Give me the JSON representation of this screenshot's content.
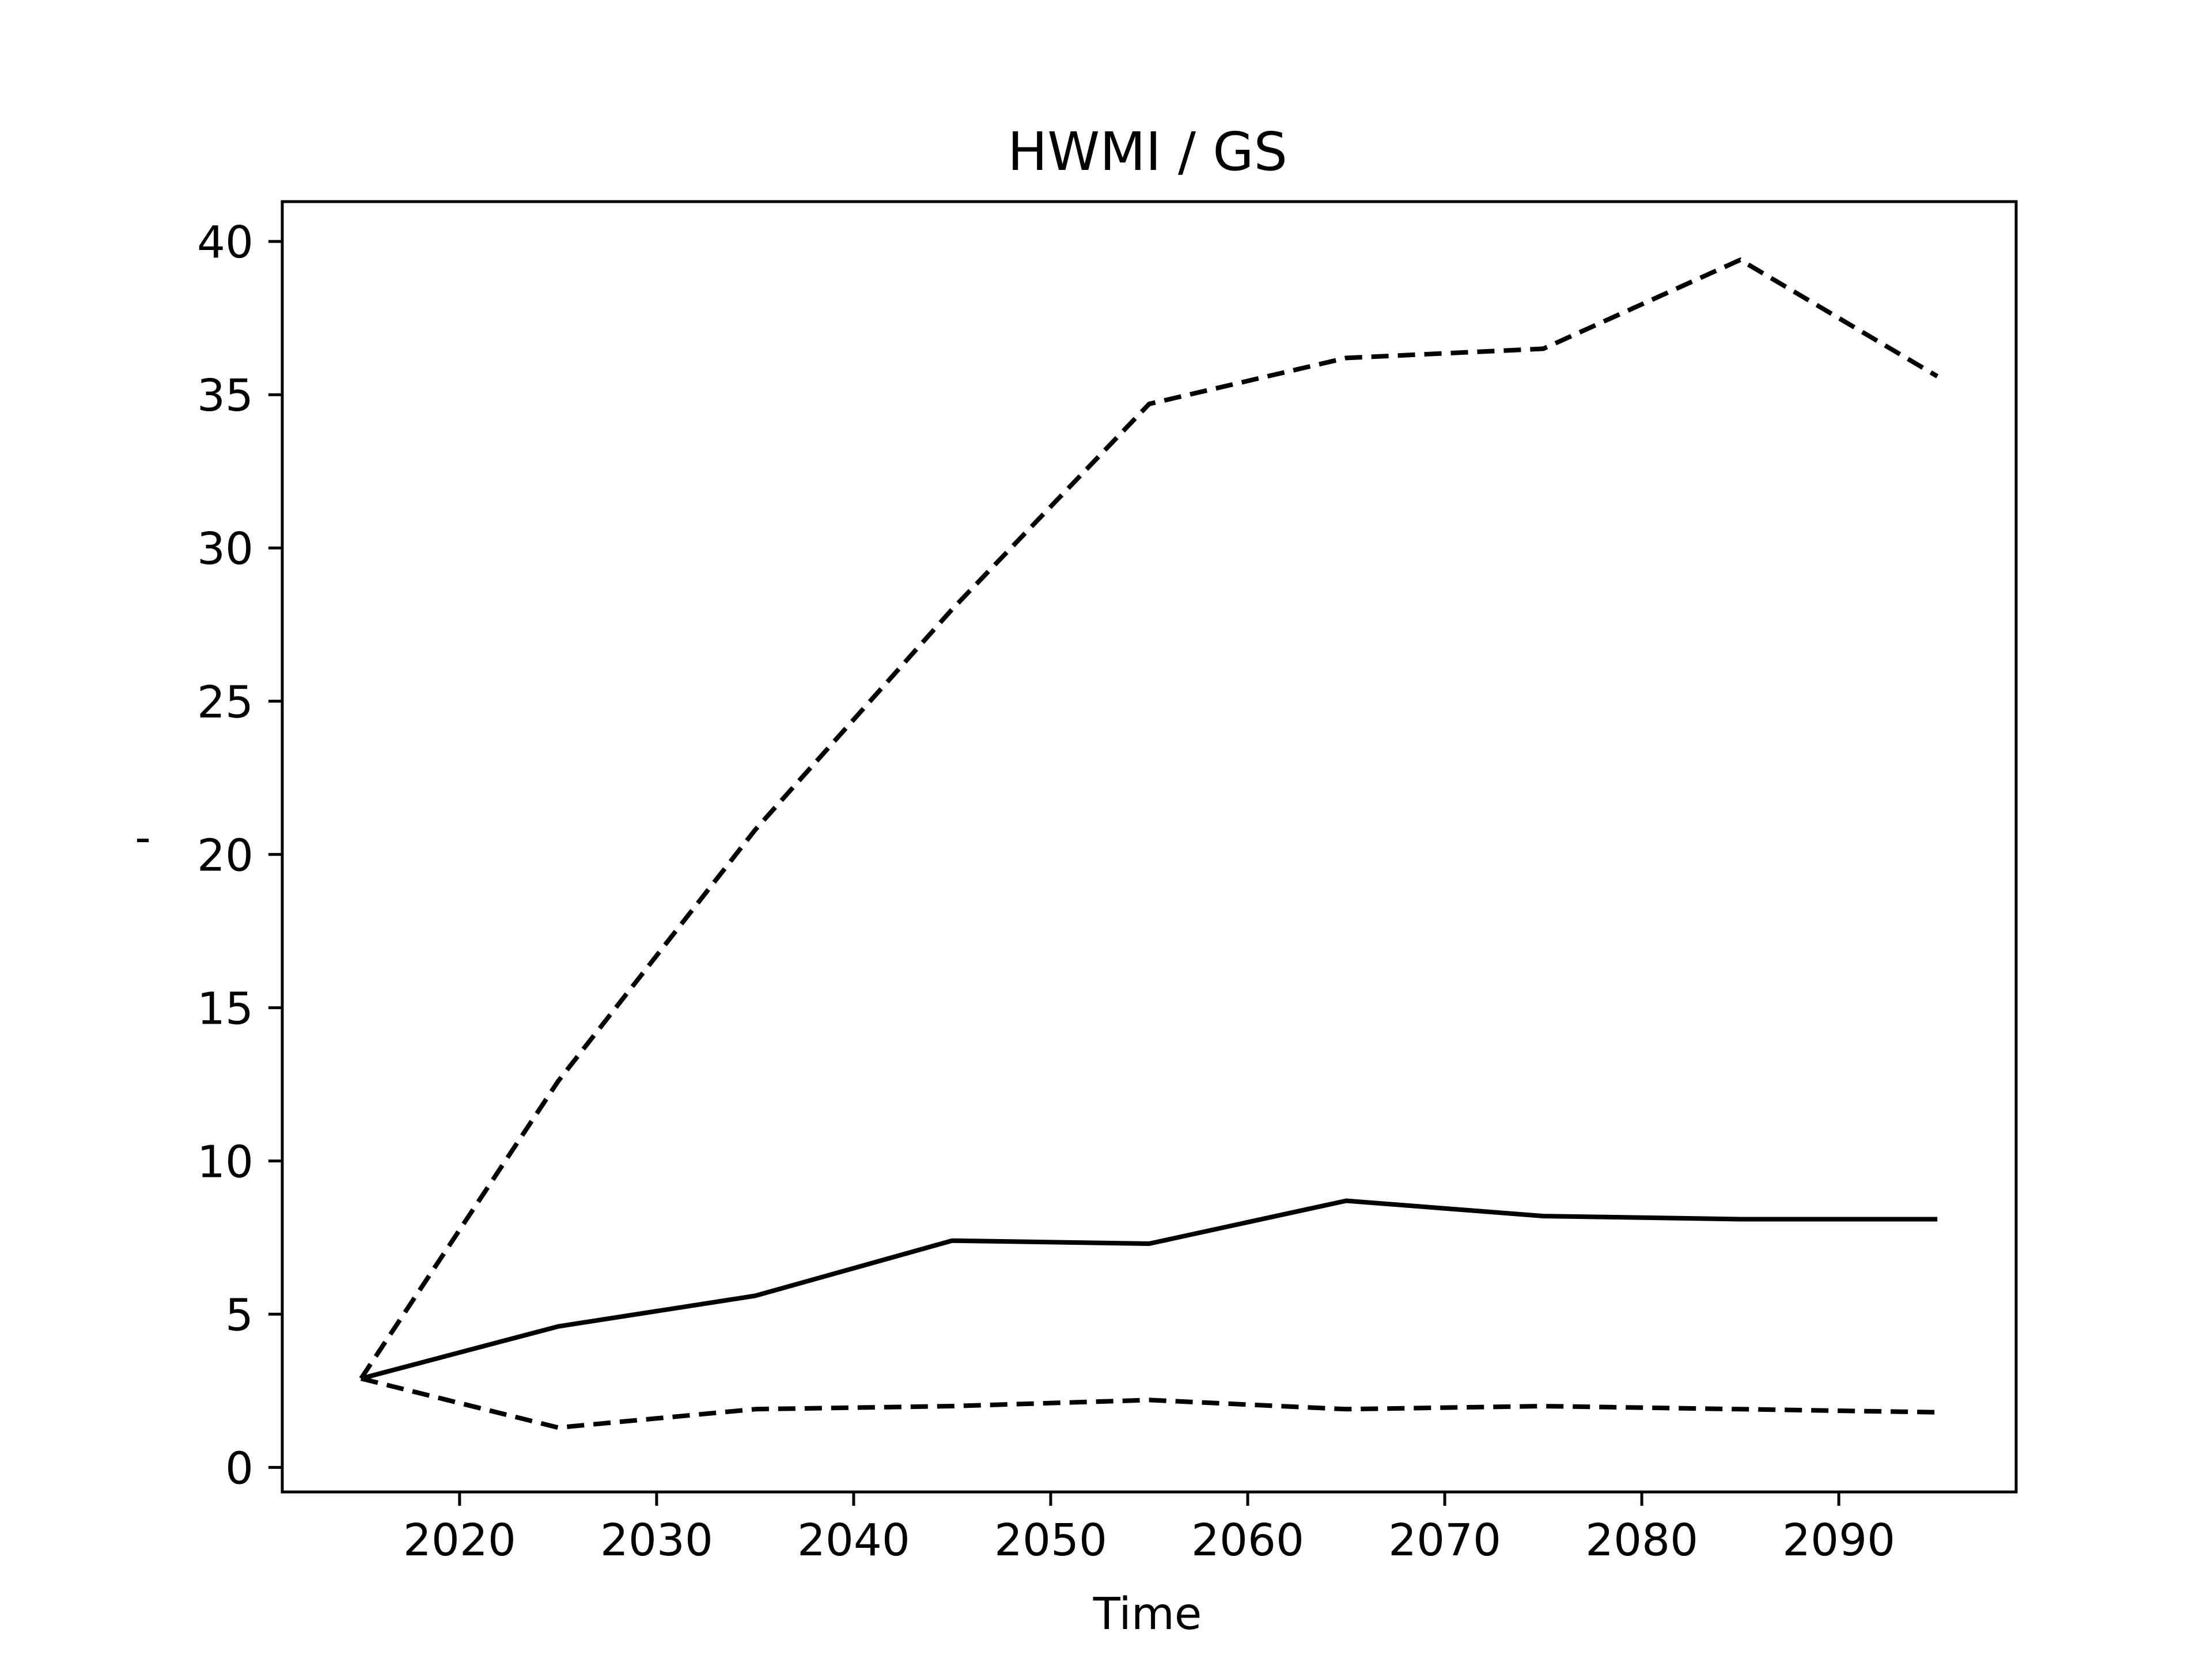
{
  "chart_data": {
    "type": "line",
    "title": "HWMI / GS",
    "xlabel": "Time",
    "ylabel": "-",
    "xlim": [
      2011,
      2099
    ],
    "ylim": [
      -0.8,
      41.3
    ],
    "xticks": [
      2020,
      2030,
      2040,
      2050,
      2060,
      2070,
      2080,
      2090
    ],
    "yticks": [
      0,
      5,
      10,
      15,
      20,
      25,
      30,
      35,
      40
    ],
    "grid": false,
    "x": [
      2015,
      2025,
      2035,
      2045,
      2055,
      2065,
      2075,
      2085,
      2095
    ],
    "series": [
      {
        "style": "solid",
        "values": [
          2.9,
          4.6,
          5.6,
          7.4,
          7.3,
          8.7,
          8.2,
          8.1,
          8.1
        ]
      },
      {
        "style": "dashed",
        "values": [
          2.9,
          12.6,
          20.8,
          28.0,
          34.7,
          36.2,
          36.5,
          39.4,
          35.6
        ]
      },
      {
        "style": "dashed",
        "values": [
          2.9,
          1.3,
          1.9,
          2.0,
          2.2,
          1.9,
          2.0,
          1.9,
          1.8
        ]
      }
    ],
    "colors": {
      "line": "#000000",
      "frame": "#000000",
      "background": "#ffffff"
    }
  }
}
